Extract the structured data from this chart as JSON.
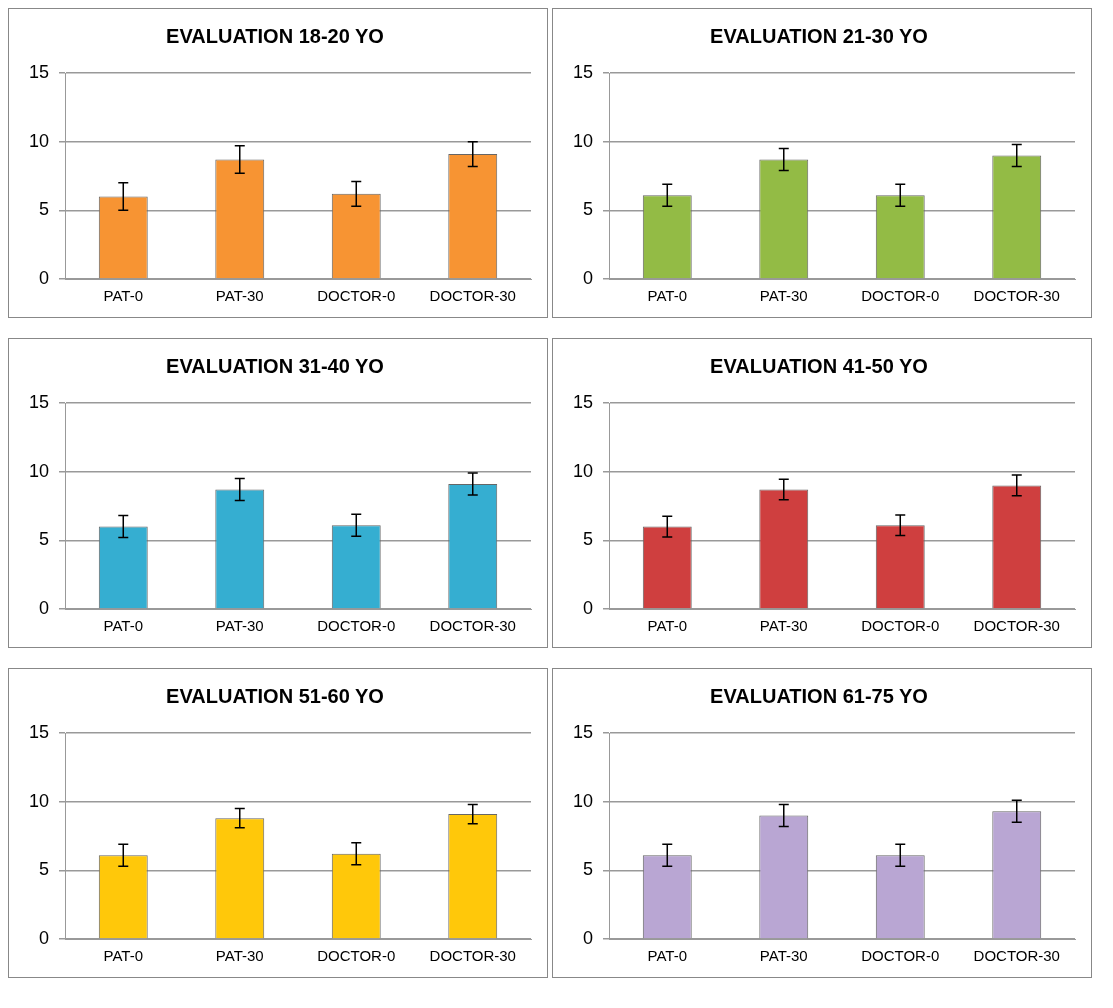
{
  "chart_data": [
    {
      "type": "bar",
      "title": "EVALUATION 18-20 YO",
      "categories": [
        "PAT-0",
        "PAT-30",
        "DOCTOR-0",
        "DOCTOR-30"
      ],
      "values": [
        6.0,
        8.7,
        6.2,
        9.1
      ],
      "errors": [
        1.0,
        1.0,
        0.9,
        0.9
      ],
      "color": "#f79433",
      "ylim": [
        0,
        15
      ],
      "yticks": [
        0,
        5,
        10,
        15
      ],
      "grid": "y"
    },
    {
      "type": "bar",
      "title": "EVALUATION 21-30 YO",
      "categories": [
        "PAT-0",
        "PAT-30",
        "DOCTOR-0",
        "DOCTOR-30"
      ],
      "values": [
        6.1,
        8.7,
        6.1,
        9.0
      ],
      "errors": [
        0.8,
        0.8,
        0.8,
        0.8
      ],
      "color": "#93bb45",
      "ylim": [
        0,
        15
      ],
      "yticks": [
        0,
        5,
        10,
        15
      ],
      "grid": "y"
    },
    {
      "type": "bar",
      "title": "EVALUATION 31-40 YO",
      "categories": [
        "PAT-0",
        "PAT-30",
        "DOCTOR-0",
        "DOCTOR-30"
      ],
      "values": [
        6.0,
        8.7,
        6.1,
        9.1
      ],
      "errors": [
        0.8,
        0.8,
        0.8,
        0.8
      ],
      "color": "#35aed1",
      "ylim": [
        0,
        15
      ],
      "yticks": [
        0,
        5,
        10,
        15
      ],
      "grid": "y"
    },
    {
      "type": "bar",
      "title": "EVALUATION 41-50 YO",
      "categories": [
        "PAT-0",
        "PAT-30",
        "DOCTOR-0",
        "DOCTOR-30"
      ],
      "values": [
        6.0,
        8.7,
        6.1,
        9.0
      ],
      "errors": [
        0.75,
        0.75,
        0.75,
        0.75
      ],
      "color": "#cf3f3f",
      "ylim": [
        0,
        15
      ],
      "yticks": [
        0,
        5,
        10,
        15
      ],
      "grid": "y"
    },
    {
      "type": "bar",
      "title": "EVALUATION 51-60 YO",
      "categories": [
        "PAT-0",
        "PAT-30",
        "DOCTOR-0",
        "DOCTOR-30"
      ],
      "values": [
        6.1,
        8.8,
        6.2,
        9.1
      ],
      "errors": [
        0.8,
        0.7,
        0.8,
        0.7
      ],
      "color": "#ffc80a",
      "ylim": [
        0,
        15
      ],
      "yticks": [
        0,
        5,
        10,
        15
      ],
      "grid": "y"
    },
    {
      "type": "bar",
      "title": "EVALUATION 61-75 YO",
      "categories": [
        "PAT-0",
        "PAT-30",
        "DOCTOR-0",
        "DOCTOR-30"
      ],
      "values": [
        6.1,
        9.0,
        6.1,
        9.3
      ],
      "errors": [
        0.8,
        0.8,
        0.8,
        0.8
      ],
      "color": "#b9a6d3",
      "ylim": [
        0,
        15
      ],
      "yticks": [
        0,
        5,
        10,
        15
      ],
      "grid": "y"
    }
  ]
}
